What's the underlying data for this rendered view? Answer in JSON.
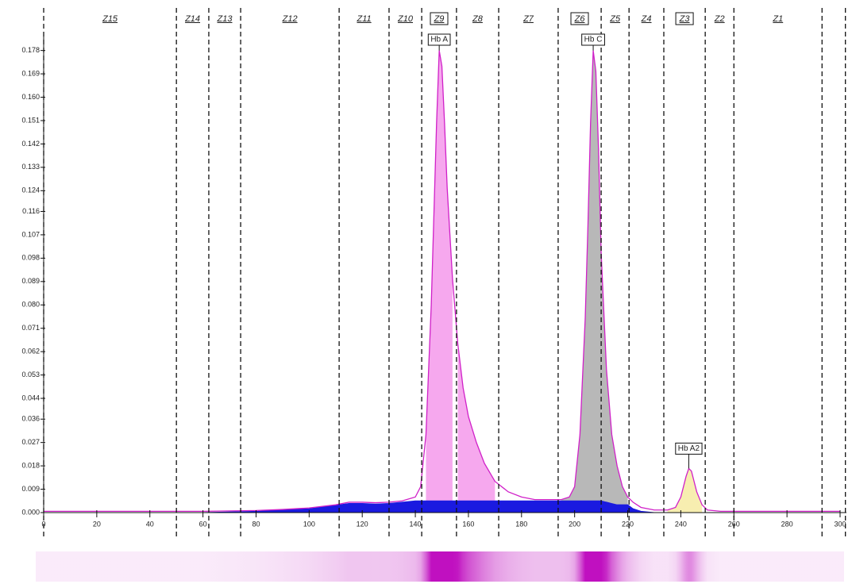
{
  "chart_data": {
    "type": "line",
    "x": [
      0,
      20,
      40,
      60,
      80,
      90,
      100,
      110,
      115,
      120,
      125,
      130,
      135,
      140,
      142,
      144,
      146,
      147,
      148,
      149,
      150,
      151,
      152,
      154,
      156,
      158,
      160,
      163,
      166,
      170,
      175,
      180,
      185,
      190,
      195,
      198,
      200,
      202,
      204,
      205,
      206,
      207,
      208,
      209,
      210,
      212,
      214,
      216,
      218,
      220,
      222,
      225,
      230,
      235,
      238,
      240,
      241,
      242,
      243,
      244,
      245,
      246,
      248,
      250,
      255,
      260,
      270,
      280,
      290,
      300
    ],
    "series": [
      {
        "color": "#d020c8",
        "values": [
          0.0005,
          0.0005,
          0.0005,
          0.0005,
          0.0008,
          0.0012,
          0.0018,
          0.003,
          0.004,
          0.004,
          0.0038,
          0.004,
          0.0045,
          0.006,
          0.01,
          0.03,
          0.08,
          0.115,
          0.15,
          0.178,
          0.172,
          0.15,
          0.125,
          0.09,
          0.065,
          0.048,
          0.037,
          0.027,
          0.019,
          0.012,
          0.008,
          0.006,
          0.005,
          0.005,
          0.005,
          0.006,
          0.01,
          0.03,
          0.075,
          0.11,
          0.15,
          0.178,
          0.17,
          0.14,
          0.1,
          0.055,
          0.03,
          0.018,
          0.01,
          0.006,
          0.004,
          0.002,
          0.001,
          0.001,
          0.002,
          0.006,
          0.01,
          0.014,
          0.017,
          0.016,
          0.012,
          0.008,
          0.003,
          0.001,
          0.0005,
          0.0005,
          0.0005,
          0.0005,
          0.0005,
          0.0005
        ]
      },
      {
        "color": "#1a1ae0",
        "values": [
          0,
          0,
          0,
          0,
          0.0005,
          0.001,
          0.0015,
          0.0028,
          0.0035,
          0.0035,
          0.0033,
          0.0035,
          0.004,
          0.0045,
          0.0045,
          0.0045,
          0.0045,
          0.0045,
          0.0045,
          0.0045,
          0.0045,
          0.0045,
          0.0045,
          0.0045,
          0.0045,
          0.0045,
          0.0045,
          0.0045,
          0.0045,
          0.0045,
          0.0045,
          0.0045,
          0.0045,
          0.0045,
          0.0045,
          0.0045,
          0.0045,
          0.0045,
          0.0045,
          0.0045,
          0.0045,
          0.0045,
          0.0045,
          0.0045,
          0.0045,
          0.004,
          0.0035,
          0.003,
          0.003,
          0.003,
          0.0015,
          0.0005,
          0,
          0,
          0,
          0,
          0,
          0,
          0,
          0,
          0,
          0,
          0,
          0,
          0,
          0,
          0,
          0,
          0,
          0
        ]
      }
    ],
    "xlim": [
      0,
      300
    ],
    "xticks": [
      0,
      20,
      40,
      60,
      80,
      100,
      120,
      140,
      160,
      180,
      200,
      220,
      240,
      260,
      280,
      300
    ],
    "ylim": [
      0,
      0.184
    ],
    "yticks": [
      {
        "value": 0,
        "label": "0.000"
      },
      0.009,
      0.018,
      0.027,
      0.036,
      0.044,
      0.053,
      0.062,
      0.071,
      {
        "value": 0.08,
        "label": "0.080"
      },
      0.089,
      0.098,
      0.107,
      0.116,
      0.124,
      0.133,
      0.142,
      0.151,
      {
        "value": 0.16,
        "label": "0.160"
      },
      0.169,
      0.178
    ],
    "zone_boundaries": [
      0,
      50,
      62.2,
      74.2,
      111.3,
      130.1,
      142.4,
      155.5,
      171.4,
      193.8,
      210,
      220.5,
      233.6,
      249.2,
      260,
      293.2,
      302
    ],
    "zones": [
      {
        "label": "Z15"
      },
      {
        "label": "Z14"
      },
      {
        "label": "Z13"
      },
      {
        "label": "Z12"
      },
      {
        "label": "Z11"
      },
      {
        "label": "Z10"
      },
      {
        "label": "Z9",
        "boxed": true,
        "fill": "#f6a8ee"
      },
      {
        "label": "Z8",
        "fill": "#f6a8ee"
      },
      {
        "label": "Z7"
      },
      {
        "label": "Z6",
        "boxed": true,
        "fill": "#b8b8b8"
      },
      {
        "label": "Z5",
        "fill": "#b8b8b8"
      },
      {
        "label": "Z4"
      },
      {
        "label": "Z3",
        "boxed": true,
        "fill": "#f7eeb0"
      },
      {
        "label": "Z2"
      },
      {
        "label": "Z1"
      }
    ],
    "peaks": [
      {
        "label": "Hb A",
        "x": 149
      },
      {
        "label": "Hb C",
        "x": 207
      },
      {
        "label": "Hb A2",
        "x": 243
      }
    ]
  }
}
